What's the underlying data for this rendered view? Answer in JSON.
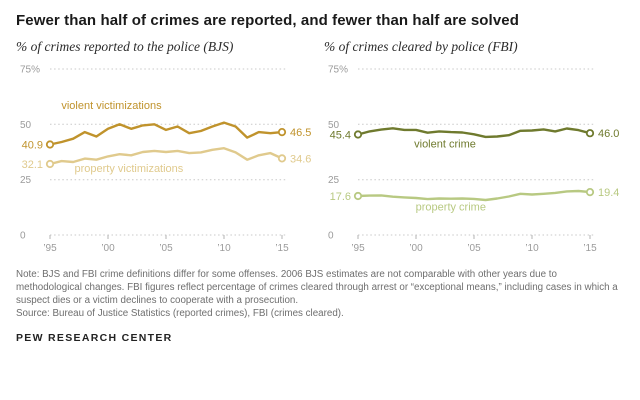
{
  "title": "Fewer than half of crimes are reported, and fewer than half are solved",
  "note": "Note: BJS and FBI crime definitions differ for some offenses. 2006 BJS estimates are not comparable with other years due to methodological changes. FBI figures reflect percentage of crimes cleared through arrest or “exceptional means,” including cases in which a suspect dies or a victim declines to cooperate with a prosecution.",
  "source": "Source: Bureau of Justice Statistics (reported crimes), FBI (crimes cleared).",
  "brand": "PEW RESEARCH CENTER",
  "chart_data": [
    {
      "type": "line",
      "title": "% of crimes reported to the police (BJS)",
      "x": [
        1995,
        1996,
        1997,
        1998,
        1999,
        2000,
        2001,
        2002,
        2003,
        2004,
        2005,
        2006,
        2007,
        2008,
        2009,
        2010,
        2011,
        2012,
        2013,
        2014,
        2015
      ],
      "x_ticks": [
        1995,
        2000,
        2005,
        2010,
        2015
      ],
      "x_tick_labels": [
        "’95",
        "’00",
        "’05",
        "’10",
        "’15"
      ],
      "ylim": [
        0,
        75
      ],
      "y_ticks": [
        75,
        50,
        25,
        0
      ],
      "y_tick_labels": [
        "75%",
        "50",
        "25",
        "0"
      ],
      "grid": "dotted",
      "legend_position": "inline-labels",
      "series": [
        {
          "name": "violent victimizations",
          "color": "#C0932C",
          "start_label": "40.9",
          "end_label": "46.5",
          "label_pos": {
            "x": 2000.3,
            "y": 57
          },
          "values": [
            40.9,
            42.0,
            43.5,
            46.5,
            44.5,
            48.0,
            50.0,
            48.0,
            49.5,
            50.0,
            47.5,
            49.0,
            46.0,
            47.0,
            49.0,
            50.8,
            49.0,
            44.0,
            46.5,
            46.0,
            46.5
          ]
        },
        {
          "name": "property victimizations",
          "color": "#E0CA8D",
          "start_label": "32.1",
          "end_label": "34.6",
          "label_pos": {
            "x": 2001.8,
            "y": 28.5
          },
          "values": [
            32.1,
            33.4,
            33.0,
            34.5,
            34.0,
            35.5,
            36.5,
            36.0,
            37.5,
            38.0,
            37.5,
            38.0,
            37.0,
            37.3,
            38.5,
            39.2,
            37.3,
            34.0,
            36.0,
            37.0,
            34.6
          ]
        }
      ]
    },
    {
      "type": "line",
      "title": "% of crimes cleared by police (FBI)",
      "x": [
        1995,
        1996,
        1997,
        1998,
        1999,
        2000,
        2001,
        2002,
        2003,
        2004,
        2005,
        2006,
        2007,
        2008,
        2009,
        2010,
        2011,
        2012,
        2013,
        2014,
        2015
      ],
      "x_ticks": [
        1995,
        2000,
        2005,
        2010,
        2015
      ],
      "x_tick_labels": [
        "’95",
        "’00",
        "’05",
        "’10",
        "’15"
      ],
      "ylim": [
        0,
        75
      ],
      "y_ticks": [
        75,
        50,
        25,
        0
      ],
      "y_tick_labels": [
        "75%",
        "50",
        "25",
        "0"
      ],
      "grid": "dotted",
      "legend_position": "inline-labels",
      "series": [
        {
          "name": "violent crime",
          "color": "#6F7A2E",
          "start_label": "45.4",
          "end_label": "46.0",
          "label_pos": {
            "x": 2002.5,
            "y": 39.5
          },
          "values": [
            45.4,
            46.8,
            47.6,
            48.2,
            47.5,
            47.5,
            46.2,
            46.8,
            46.5,
            46.3,
            45.5,
            44.3,
            44.5,
            45.1,
            47.1,
            47.2,
            47.7,
            46.8,
            48.1,
            47.4,
            46.0
          ]
        },
        {
          "name": "property crime",
          "color": "#B8C982",
          "start_label": "17.6",
          "end_label": "19.4",
          "label_pos": {
            "x": 2003,
            "y": 11
          },
          "values": [
            17.6,
            17.8,
            17.9,
            17.3,
            17.0,
            16.7,
            16.2,
            16.5,
            16.4,
            16.5,
            16.3,
            15.8,
            16.5,
            17.4,
            18.6,
            18.3,
            18.6,
            19.0,
            19.7,
            19.9,
            19.4
          ]
        }
      ]
    }
  ]
}
